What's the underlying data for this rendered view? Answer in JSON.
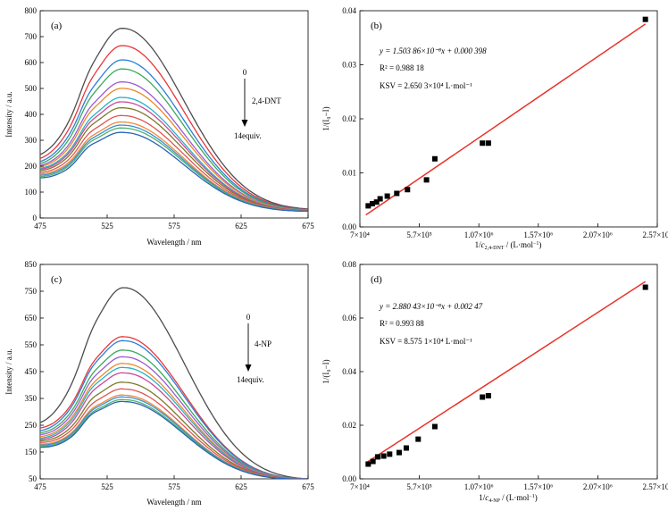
{
  "figure": {
    "panels": [
      {
        "id": "a",
        "label": "(a)",
        "xlabel": "Wavelength / nm",
        "ylabel": "Intensity / a.u.",
        "xticks": [
          "475",
          "525",
          "575",
          "625",
          "675"
        ],
        "yticks": [
          "0",
          "100",
          "200",
          "300",
          "400",
          "500",
          "600",
          "700",
          "800"
        ],
        "annot_top": "0",
        "annot_analyte": "2,4-DNT",
        "annot_bottom": "14equiv."
      },
      {
        "id": "b",
        "label": "(b)",
        "xlabel_parts": [
          "1/",
          "c",
          "2,4-DNT",
          " / (L·mol",
          "−1",
          ")"
        ],
        "ylabel": "1/(I₀−I)",
        "xticks": [
          "7×10⁴",
          "5.7×10⁵",
          "1.07×10⁶",
          "1.57×10⁶",
          "2.07×10⁶",
          "2.57×10⁶"
        ],
        "yticks": [
          "0.00",
          "0.01",
          "0.02",
          "0.03",
          "0.04"
        ],
        "eq_line": "y = 1.503 86×10⁻⁸x + 0.000 398",
        "r2_line": "R² = 0.988 18",
        "ksv_line": "KSV = 2.650 3×10⁴ L·mol⁻¹"
      },
      {
        "id": "c",
        "label": "(c)",
        "xlabel": "Wavelength / nm",
        "ylabel": "Intensity / a.u.",
        "xticks": [
          "475",
          "525",
          "575",
          "625",
          "675"
        ],
        "yticks": [
          "50",
          "150",
          "250",
          "350",
          "450",
          "550",
          "650",
          "750",
          "850"
        ],
        "annot_top": "0",
        "annot_analyte": "4-NP",
        "annot_bottom": "14equiv."
      },
      {
        "id": "d",
        "label": "(d)",
        "xlabel_parts": [
          "1/",
          "c",
          "4-NP",
          " / (L·mol",
          "−1",
          ")"
        ],
        "ylabel": "1/(I₀−I)",
        "xticks": [
          "7×10⁴",
          "5.7×10⁵",
          "1.07×10⁶",
          "1.57×10⁶",
          "2.07×10⁶",
          "2.57×10⁶"
        ],
        "yticks": [
          "0.00",
          "0.02",
          "0.04",
          "0.06",
          "0.08"
        ],
        "eq_line": "y = 2.880 43×10⁻⁸x + 0.002 47",
        "r2_line": "R² = 0.993 88",
        "ksv_line": "KSV = 8.575 1×10⁴ L·mol⁻¹"
      }
    ]
  },
  "chart_data": [
    {
      "type": "line",
      "panel": "a",
      "xlabel": "Wavelength / nm",
      "ylabel": "Intensity / a.u.",
      "xlim": [
        475,
        675
      ],
      "ylim": [
        0,
        800
      ],
      "series_peak_wavelength": 537,
      "shoulder_wavelength": 510,
      "series_colors": [
        "#4d4d4d",
        "#e8363a",
        "#2b7fd6",
        "#3aa858",
        "#9a5bd1",
        "#e88a2a",
        "#27b3c4",
        "#c94a9a",
        "#7a7a2a",
        "#e05555",
        "#f08a3a",
        "#3b8fd0",
        "#4fb26e",
        "#2b62b8"
      ],
      "peak_values": [
        732,
        665,
        610,
        575,
        525,
        500,
        465,
        448,
        425,
        395,
        370,
        358,
        347,
        330
      ],
      "start_values": [
        245,
        230,
        218,
        210,
        203,
        198,
        192,
        188,
        183,
        176,
        170,
        165,
        160,
        155
      ],
      "end_values": [
        35,
        33,
        32,
        31,
        30,
        30,
        29,
        29,
        28,
        28,
        27,
        27,
        26,
        26
      ]
    },
    {
      "type": "scatter",
      "panel": "b",
      "xlim": [
        70000,
        2570000
      ],
      "ylim": [
        0,
        0.04
      ],
      "x": [
        140000,
        175000,
        210000,
        240000,
        300000,
        380000,
        470000,
        630000,
        700000,
        1100000,
        1150000,
        2470000
      ],
      "y": [
        0.0039,
        0.0043,
        0.0046,
        0.0052,
        0.0057,
        0.0062,
        0.0069,
        0.0087,
        0.0126,
        0.0155,
        0.0155,
        0.0384
      ],
      "fit": {
        "slope": 1.50386e-08,
        "intercept": 0.000398,
        "x_range": [
          120000,
          2470000
        ]
      },
      "marker_color": "#000000",
      "fit_color": "#e8332a"
    },
    {
      "type": "line",
      "panel": "c",
      "xlabel": "Wavelength / nm",
      "ylabel": "Intensity / a.u.",
      "xlim": [
        475,
        675
      ],
      "ylim": [
        50,
        850
      ],
      "series_peak_wavelength": 538,
      "shoulder_wavelength": 512,
      "series_colors": [
        "#4d4d4d",
        "#e8363a",
        "#2b7fd6",
        "#3aa858",
        "#9a5bd1",
        "#e88a2a",
        "#27b3c4",
        "#c94a9a",
        "#7a7a2a",
        "#e05555",
        "#f08a3a",
        "#3b8fd0",
        "#4fb26e",
        "#2b62b8"
      ],
      "peak_values": [
        763,
        580,
        565,
        530,
        505,
        480,
        465,
        445,
        410,
        385,
        362,
        355,
        345,
        338
      ],
      "start_values": [
        260,
        240,
        230,
        222,
        215,
        208,
        202,
        197,
        192,
        186,
        180,
        176,
        172,
        168
      ],
      "end_values": [
        50,
        50,
        50,
        50,
        50,
        50,
        50,
        50,
        50,
        50,
        50,
        50,
        50,
        50
      ]
    },
    {
      "type": "scatter",
      "panel": "d",
      "xlim": [
        70000,
        2570000
      ],
      "ylim": [
        0,
        0.08
      ],
      "x": [
        140000,
        180000,
        220000,
        270000,
        320000,
        400000,
        460000,
        560000,
        700000,
        1100000,
        1150000,
        2470000
      ],
      "y": [
        0.0055,
        0.0065,
        0.0082,
        0.0085,
        0.0092,
        0.0098,
        0.0115,
        0.0148,
        0.0195,
        0.0305,
        0.031,
        0.0715
      ],
      "fit": {
        "slope": 2.88043e-08,
        "intercept": 0.00247,
        "x_range": [
          120000,
          2470000
        ]
      },
      "marker_color": "#000000",
      "fit_color": "#e8332a"
    }
  ]
}
